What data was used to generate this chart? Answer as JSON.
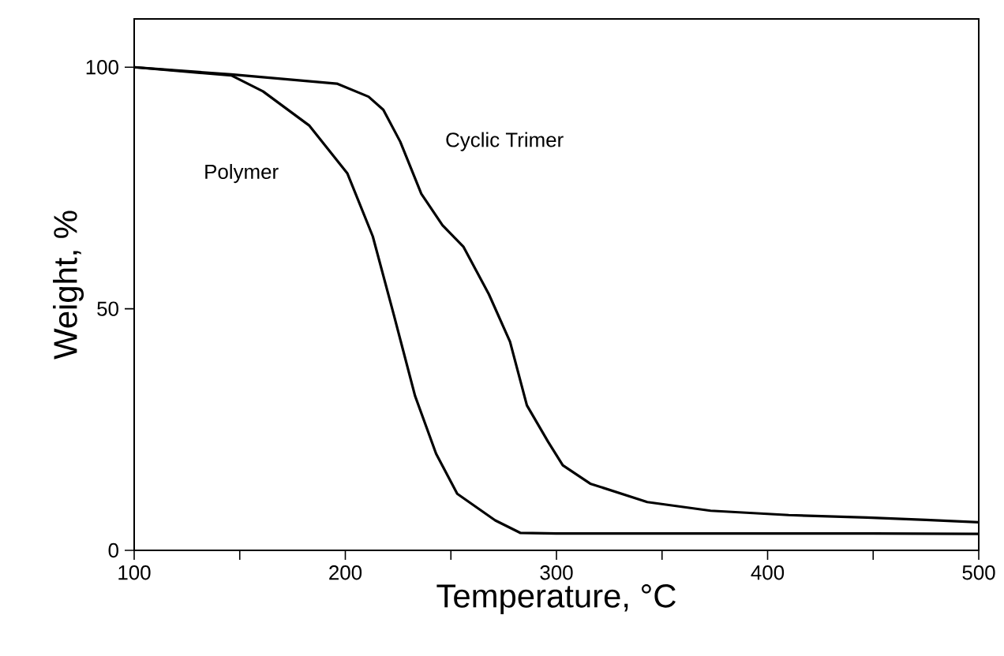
{
  "chart_data": {
    "type": "line",
    "xlabel": "Temperature, °C",
    "ylabel": "Weight, %",
    "xlim": [
      100,
      500
    ],
    "ylim": [
      0,
      110
    ],
    "xticks": [
      100,
      200,
      300,
      400,
      500
    ],
    "yticks": [
      0,
      50,
      100
    ],
    "grid": false,
    "marker": "none",
    "line_style": "solid",
    "series": [
      {
        "name": "Polymer",
        "color": "#000000",
        "x": [
          100,
          146,
          161,
          183,
          201,
          213,
          223,
          233,
          243,
          253,
          271,
          283,
          300,
          350,
          400,
          450,
          500
        ],
        "values": [
          100,
          98.3,
          95,
          87.9,
          78,
          65,
          48.7,
          32,
          20,
          11.7,
          6.2,
          3.6,
          3.5,
          3.5,
          3.5,
          3.5,
          3.4
        ]
      },
      {
        "name": "Cyclic Trimer",
        "color": "#000000",
        "x": [
          100,
          146,
          196,
          211,
          218,
          226,
          236,
          246,
          256,
          268,
          278,
          286,
          296,
          303,
          316,
          343,
          373,
          410,
          447,
          475,
          500
        ],
        "values": [
          100,
          98.5,
          96.6,
          93.9,
          91.2,
          84.6,
          73.8,
          67.3,
          62.8,
          53,
          43.2,
          30,
          22.5,
          17.6,
          13.8,
          10,
          8.2,
          7.3,
          6.8,
          6.3,
          5.8
        ]
      }
    ]
  }
}
